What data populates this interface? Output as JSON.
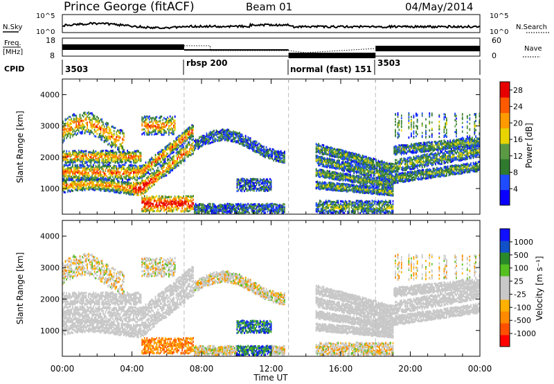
{
  "header": {
    "station": "Prince George (fitACF)",
    "beam": "Beam 01",
    "date": "04/May/2014"
  },
  "left_labels": {
    "nsky": "N.Sky",
    "freq_line1": "Freq.",
    "freq_line2": "[MHz]",
    "cpid": "CPID"
  },
  "right_labels": {
    "nsearch": "N.Search",
    "nave": "Nave"
  },
  "noise_panel": {
    "left_ticks": [
      "10^5",
      "10^0"
    ],
    "right_ticks": [
      "10^5",
      "10^0"
    ]
  },
  "freq_panel": {
    "left_ticks": [
      "18",
      "8"
    ],
    "right_ticks": [
      "60",
      "0"
    ]
  },
  "cpid_segments": [
    {
      "label": "3503"
    },
    {
      "label": "rbsp 200"
    },
    {
      "label": "normal (fast) 151"
    },
    {
      "label": "3503"
    }
  ],
  "colors": {
    "power_scale": [
      "#0a00ff",
      "#1f4bff",
      "#2f7a2f",
      "#5a9a44",
      "#e8d400",
      "#ff9a00",
      "#ff5a00",
      "#e80000"
    ],
    "velocity_scale": [
      "#ff0000",
      "#ff5000",
      "#ff8a00",
      "#ffb000",
      "#c8c8c8",
      "#c8c8c8",
      "#55c020",
      "#2a8a2a",
      "#1050c8",
      "#1010ff"
    ],
    "ground_scatter": "#c8c8c8"
  },
  "chart_data": [
    {
      "type": "heatmap",
      "name": "power",
      "title": "",
      "xlabel": "Time UT",
      "ylabel": "Slant Range [km]",
      "x_ticks": [
        "00:00",
        "04:00",
        "08:00",
        "12:00",
        "16:00",
        "20:00",
        "00:00"
      ],
      "y_ticks": [
        "1000",
        "2000",
        "3000",
        "4000"
      ],
      "xlim_hours": [
        0,
        24
      ],
      "ylim_km": [
        180,
        4500
      ],
      "colorbar_label": "Power [dB]",
      "colorbar_ticks": [
        "4",
        "8",
        "12",
        "16",
        "20",
        "24",
        "28"
      ],
      "colorbar_range": [
        0,
        30
      ],
      "mode_boundaries_hours": [
        7,
        13,
        18
      ]
    },
    {
      "type": "heatmap",
      "name": "velocity",
      "title": "",
      "xlabel": "Time UT",
      "ylabel": "Slant Range [km]",
      "x_ticks": [
        "00:00",
        "04:00",
        "08:00",
        "12:00",
        "16:00",
        "20:00",
        "00:00"
      ],
      "y_ticks": [
        "1000",
        "2000",
        "3000",
        "4000"
      ],
      "xlim_hours": [
        0,
        24
      ],
      "ylim_km": [
        180,
        4500
      ],
      "colorbar_label": "Velocity [m s⁻¹]",
      "colorbar_ticks": [
        "1000",
        "500",
        "100",
        "25",
        "-25",
        "-100",
        "-500",
        "-1000"
      ],
      "mode_boundaries_hours": [
        7,
        13,
        18
      ]
    }
  ],
  "x_axis_title": "Time UT"
}
